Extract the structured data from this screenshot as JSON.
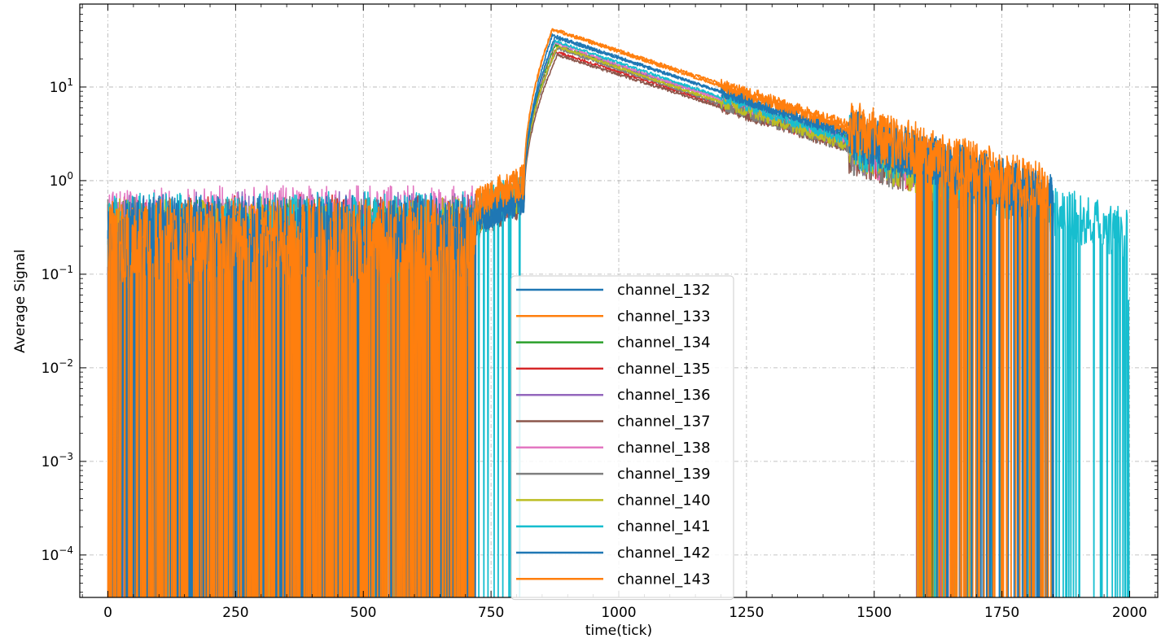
{
  "chart_data": {
    "type": "line",
    "xlabel": "time(tick)",
    "ylabel": "Average Signal",
    "xlim": [
      -55,
      2055
    ],
    "ylim": [
      3.52e-05,
      77
    ],
    "yscale": "log",
    "xticks": [
      0,
      250,
      500,
      750,
      1000,
      1250,
      1500,
      1750,
      2000
    ],
    "xtick_labels": [
      "0",
      "250",
      "500",
      "750",
      "1000",
      "1250",
      "1500",
      "1750",
      "2000"
    ],
    "yticks": [
      0.0001,
      0.001,
      0.01,
      0.1,
      1,
      10
    ],
    "ytick_labels": [
      {
        "base": "10",
        "exp": "−4"
      },
      {
        "base": "10",
        "exp": "−3"
      },
      {
        "base": "10",
        "exp": "−2"
      },
      {
        "base": "10",
        "exp": "−1"
      },
      {
        "base": "10",
        "exp": "0"
      },
      {
        "base": "10",
        "exp": "1"
      }
    ],
    "grid": true,
    "legend_position": "lower-center",
    "series": [
      {
        "name": "channel_132",
        "color": "#1f77b4",
        "baseline": 0.25,
        "rise": 0.65,
        "peak": 34,
        "peak_tick": 875,
        "end_tick": 1850
      },
      {
        "name": "channel_133",
        "color": "#ff7f0e",
        "baseline": 0.22,
        "rise": 1.0,
        "peak": 42,
        "peak_tick": 870,
        "end_tick": 1845
      },
      {
        "name": "channel_134",
        "color": "#2ca02c",
        "baseline": 0.25,
        "rise": 0.7,
        "peak": 28,
        "peak_tick": 875,
        "end_tick": 1700
      },
      {
        "name": "channel_135",
        "color": "#d62728",
        "baseline": 0.28,
        "rise": 0.7,
        "peak": 24,
        "peak_tick": 875,
        "end_tick": 1690
      },
      {
        "name": "channel_136",
        "color": "#9467bd",
        "baseline": 0.3,
        "rise": 0.7,
        "peak": 27,
        "peak_tick": 880,
        "end_tick": 1660
      },
      {
        "name": "channel_137",
        "color": "#8c564b",
        "baseline": 0.22,
        "rise": 0.6,
        "peak": 22,
        "peak_tick": 880,
        "end_tick": 1670
      },
      {
        "name": "channel_138",
        "color": "#e377c2",
        "baseline": 0.35,
        "rise": 0.8,
        "peak": 30,
        "peak_tick": 875,
        "end_tick": 1650
      },
      {
        "name": "channel_139",
        "color": "#7f7f7f",
        "baseline": 0.27,
        "rise": 0.7,
        "peak": 26,
        "peak_tick": 880,
        "end_tick": 1680
      },
      {
        "name": "channel_140",
        "color": "#bcbd22",
        "baseline": 0.26,
        "rise": 0.7,
        "peak": 27,
        "peak_tick": 880,
        "end_tick": 1700
      },
      {
        "name": "channel_141",
        "color": "#17becf",
        "baseline": 0.3,
        "rise": 0.9,
        "peak": 31,
        "peak_tick": 875,
        "end_tick": 1995
      },
      {
        "name": "channel_142",
        "color": "#1f77b4",
        "baseline": 0.28,
        "rise": 0.65,
        "peak": 36,
        "peak_tick": 870,
        "end_tick": 1850
      },
      {
        "name": "channel_143",
        "color": "#ff7f0e",
        "baseline": 0.25,
        "rise": 0.95,
        "peak": 41,
        "peak_tick": 870,
        "end_tick": 1840
      }
    ]
  }
}
